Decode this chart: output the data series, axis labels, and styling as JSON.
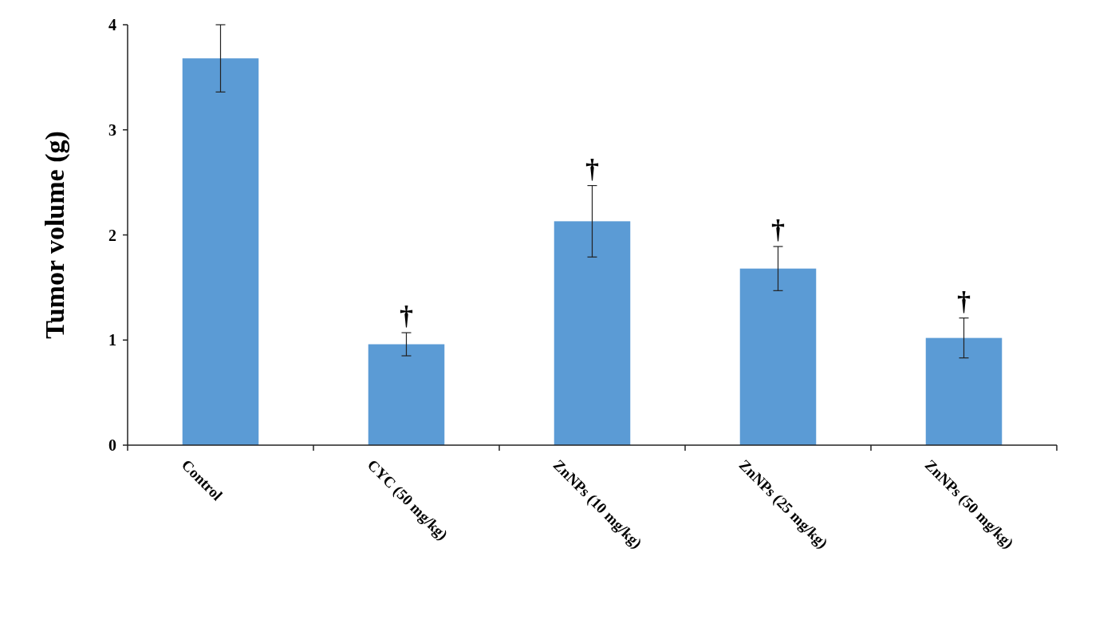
{
  "chart_data": {
    "type": "bar",
    "ylabel": "Tumor volume (g)",
    "categories": [
      "Control",
      "CYC (50 mg/kg)",
      "ZnNPs (10 mg/kg)",
      "ZnNPs (25 mg/kg)",
      "ZnNPs (50 mg/kg)"
    ],
    "values": [
      3.68,
      0.96,
      2.13,
      1.68,
      1.02
    ],
    "errors": [
      [
        3.36,
        4.0
      ],
      [
        0.85,
        1.07
      ],
      [
        1.79,
        2.47
      ],
      [
        1.47,
        1.89
      ],
      [
        0.83,
        1.21
      ]
    ],
    "color": "#5b9bd5",
    "ylim": [
      0,
      4
    ],
    "yticks": [
      0,
      1,
      2,
      3,
      4
    ],
    "grid": false,
    "annotations": [
      {
        "text": "†",
        "x": "CYC (50 mg/kg)",
        "y": 0.96
      },
      {
        "text": "†",
        "x": "ZnNPs (10 mg/kg)",
        "y": 2.13
      },
      {
        "text": "†",
        "x": "ZnNPs (25 mg/kg)",
        "y": 1.68
      },
      {
        "text": "†",
        "x": "ZnNPs (50 mg/kg)",
        "y": 1.02
      }
    ]
  }
}
